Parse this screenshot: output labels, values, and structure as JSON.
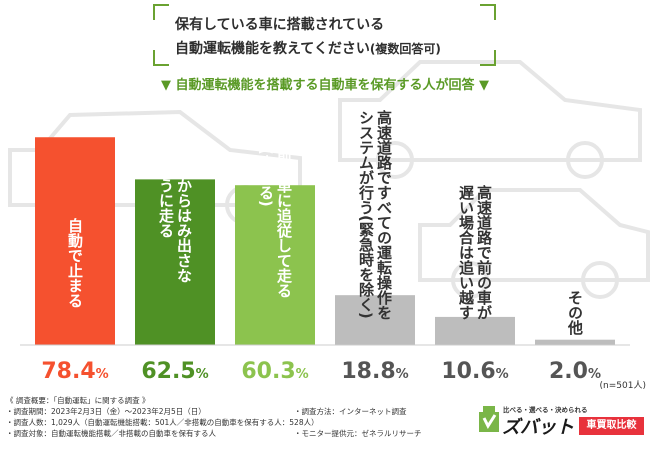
{
  "title": {
    "line1": "保有している車に搭載されている",
    "line2": "自動運転機能を教えてください",
    "line2_note": "(複数回答可)"
  },
  "subtitle": "▼ 自動運転機能を搭載する自動車を保有する人が回答 ▼",
  "chart_data": {
    "type": "bar",
    "title": "保有している車に搭載されている自動運転機能を教えてください(複数回答可)",
    "categories": [
      "自動で止まる",
      "車線からはみ出さないように走る",
      "前の車に追従して走る(止まる)",
      "高速道路ですべての運転操作をシステムが行う(緊急時を除く)",
      "高速道路で前の車が遅い場合は追い越す",
      "その他"
    ],
    "labels": [
      [
        "自動で止まる"
      ],
      [
        "車線からはみ出さな",
        "いように走る"
      ],
      [
        "前の車に追従して走る",
        "(止まる)"
      ],
      [
        "高速道路ですべての運転操作を",
        "システムが行う(緊急時を除く)"
      ],
      [
        "高速道路で前の車が",
        "遅い場合は追い越す"
      ],
      [
        "その他"
      ]
    ],
    "values": [
      78.4,
      62.5,
      60.3,
      18.8,
      10.6,
      2.0
    ],
    "value_labels": [
      "78.4",
      "62.5",
      "60.3",
      "18.8",
      "10.6",
      "2.0"
    ],
    "unit": "%",
    "colors": [
      "#f5512f",
      "#4f9125",
      "#8cc34e",
      "#bdbdbd",
      "#bdbdbd",
      "#bdbdbd"
    ],
    "value_colors": [
      "#f5512f",
      "#4f9125",
      "#8cc34e",
      "#555555",
      "#555555",
      "#555555"
    ],
    "n_note": "(n=501人)",
    "ylim": [
      0,
      100
    ]
  },
  "footnotes": {
    "survey_title": "《 調査概要：「自動運転」に関する調査 》",
    "period": "・調査期間：2023年2月3日（金）〜2023年2月5日（日）",
    "count": "・調査人数：1,029人（自動運転機能搭載：501人／非搭載の自動車を保有する人：528人）",
    "target": "・調査対象：自動運転機能搭載／非搭載の自動車を保有する人",
    "method": "・調査方法：インターネット調査",
    "provider": "・モニター提供元：ゼネラルリサーチ"
  },
  "logo": {
    "tagline": "比べる・選べる・決められる",
    "name": "ズバット",
    "badge": "車買取比較"
  }
}
